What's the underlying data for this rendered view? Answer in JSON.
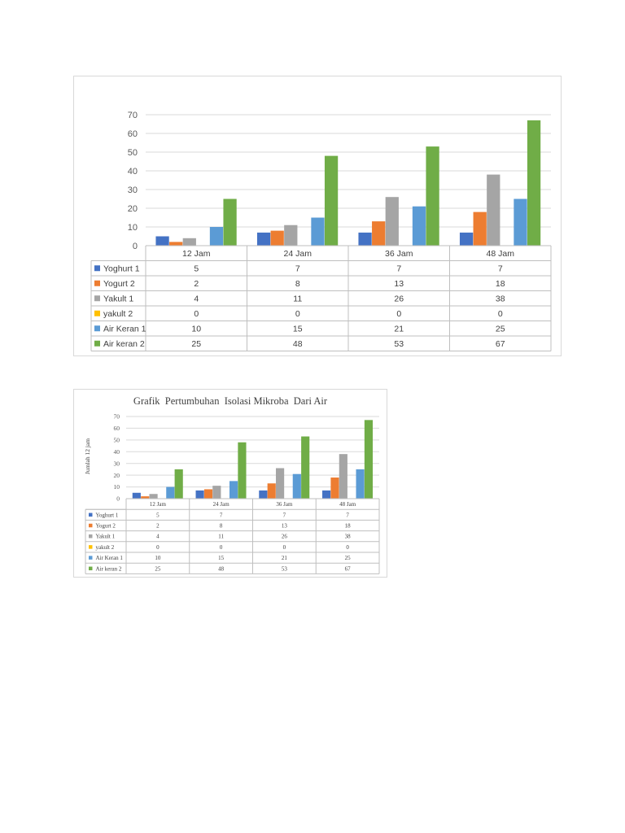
{
  "chart_data": [
    {
      "type": "bar",
      "title": "",
      "xlabel": "",
      "ylabel": "",
      "categories": [
        "12 Jam",
        "24 Jam",
        "36 Jam",
        "48 Jam"
      ],
      "ylim": [
        0,
        70
      ],
      "yticks": [
        "0",
        "10",
        "20",
        "30",
        "40",
        "50",
        "60",
        "70"
      ],
      "grid": true,
      "legend": "data-table",
      "series": [
        {
          "name": "Yoghurt 1",
          "color": "#4472c4",
          "values": [
            5,
            7,
            7,
            7
          ]
        },
        {
          "name": "Yogurt 2",
          "color": "#ed7d31",
          "values": [
            2,
            8,
            13,
            18
          ]
        },
        {
          "name": "Yakult 1",
          "color": "#a5a5a5",
          "values": [
            4,
            11,
            26,
            38
          ]
        },
        {
          "name": "yakult 2",
          "color": "#ffc000",
          "values": [
            0,
            0,
            0,
            0
          ]
        },
        {
          "name": "Air Keran 1",
          "color": "#5b9bd5",
          "values": [
            10,
            15,
            21,
            25
          ]
        },
        {
          "name": "Air keran 2",
          "color": "#70ad47",
          "values": [
            25,
            48,
            53,
            67
          ]
        }
      ]
    },
    {
      "type": "bar",
      "title": "Grafik  Pertumbuhan  Isolasi Mikroba  Dari Air",
      "xlabel": "",
      "ylabel": "Jumlah 12 jam",
      "categories": [
        "12 Jam",
        "24 Jam",
        "36 Jam",
        "48 Jam"
      ],
      "ylim": [
        0,
        70
      ],
      "yticks": [
        "0",
        "10",
        "20",
        "30",
        "40",
        "50",
        "60",
        "70"
      ],
      "grid": true,
      "legend": "data-table",
      "series": [
        {
          "name": "Yoghurt 1",
          "color": "#4472c4",
          "values": [
            5,
            7,
            7,
            7
          ]
        },
        {
          "name": "Yogurt 2",
          "color": "#ed7d31",
          "values": [
            2,
            8,
            13,
            18
          ]
        },
        {
          "name": "Yakult 1",
          "color": "#a5a5a5",
          "values": [
            4,
            11,
            26,
            38
          ]
        },
        {
          "name": "yakult 2",
          "color": "#ffc000",
          "values": [
            0,
            0,
            0,
            0
          ]
        },
        {
          "name": "Air Keran 1",
          "color": "#5b9bd5",
          "values": [
            10,
            15,
            21,
            25
          ]
        },
        {
          "name": "Air keran 2",
          "color": "#70ad47",
          "values": [
            25,
            48,
            53,
            67
          ]
        }
      ]
    }
  ]
}
